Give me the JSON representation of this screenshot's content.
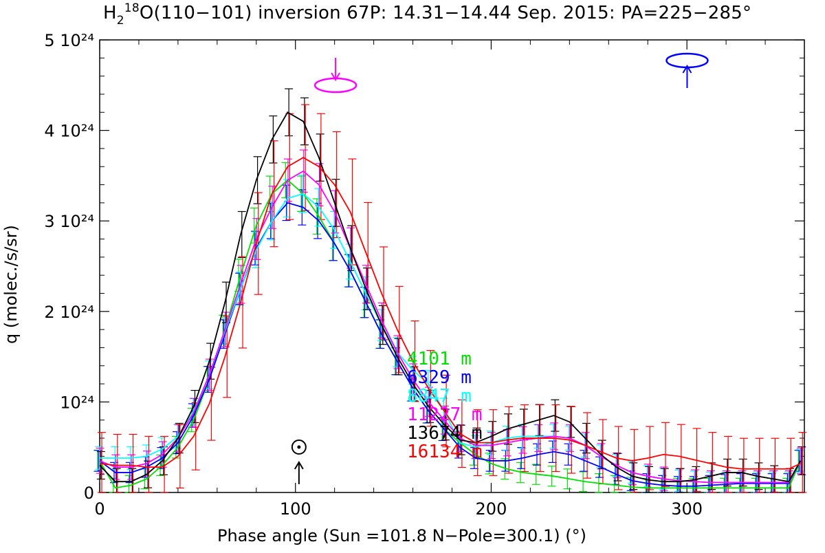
{
  "chart_data": {
    "type": "line",
    "title": {
      "molecule_h": "H",
      "molecule_sub": "2",
      "molecule_sup": "18",
      "molecule_o": "O",
      "rest": "(110−101) inversion 67P: 14.31−14.44 Sep. 2015: PA=225−285°"
    },
    "xlabel": "Phase angle (Sun =101.8 N−Pole=300.1) (°)",
    "ylabel": "q (molec./s/sr)",
    "xlim": [
      0,
      360
    ],
    "ylim": [
      0,
      5
    ],
    "y_scale_note": "10^24",
    "xticks": [
      "0",
      "100",
      "200",
      "300"
    ],
    "yticks": [
      {
        "value": 0,
        "label": "0"
      },
      {
        "value": 1,
        "label": "10²⁴"
      },
      {
        "value": 2,
        "label": "2 10²⁴"
      },
      {
        "value": 3,
        "label": "3 10²⁴"
      },
      {
        "value": 4,
        "label": "4 10²⁴"
      },
      {
        "value": 5,
        "label": "5 10²⁴"
      }
    ],
    "x": [
      0,
      8,
      16,
      24,
      32,
      40,
      48,
      56,
      64,
      72,
      80,
      88,
      96,
      104,
      112,
      120,
      128,
      136,
      144,
      152,
      160,
      168,
      176,
      184,
      192,
      200,
      208,
      216,
      224,
      232,
      240,
      248,
      256,
      264,
      272,
      280,
      288,
      296,
      304,
      312,
      320,
      328,
      336,
      344,
      352,
      358
    ],
    "series": [
      {
        "name": "4101 m",
        "label": "4101  m",
        "color": "#00e000",
        "values": [
          0.35,
          0.05,
          0.08,
          0.15,
          0.3,
          0.5,
          0.8,
          1.25,
          1.8,
          2.4,
          2.95,
          3.3,
          3.45,
          3.3,
          3.05,
          2.75,
          2.45,
          2.1,
          1.75,
          1.45,
          1.15,
          0.9,
          0.7,
          0.55,
          0.42,
          0.32,
          0.26,
          0.22,
          0.2,
          0.18,
          0.15,
          0.12,
          0.1,
          0.08,
          0.06,
          0.05,
          0.05,
          0.05,
          0.05,
          0.05,
          0.05,
          0.05,
          0.05,
          0.05,
          0.05,
          0.35
        ],
        "err": 0.15
      },
      {
        "name": "6329 m",
        "label": "6329  m",
        "color": "#0000ff",
        "values": [
          0.35,
          0.22,
          0.22,
          0.28,
          0.38,
          0.55,
          0.85,
          1.25,
          1.75,
          2.25,
          2.7,
          3.0,
          3.2,
          3.15,
          3.0,
          2.75,
          2.45,
          2.1,
          1.75,
          1.45,
          1.15,
          0.9,
          0.7,
          0.5,
          0.38,
          0.35,
          0.35,
          0.38,
          0.42,
          0.45,
          0.42,
          0.35,
          0.28,
          0.2,
          0.13,
          0.1,
          0.08,
          0.07,
          0.07,
          0.08,
          0.09,
          0.1,
          0.1,
          0.1,
          0.1,
          0.35
        ],
        "err": 0.15
      },
      {
        "name": "8847 m",
        "label": "8847  m",
        "color": "#00ffff",
        "values": [
          0.38,
          0.38,
          0.38,
          0.4,
          0.48,
          0.62,
          0.9,
          1.3,
          1.78,
          2.25,
          2.68,
          3.0,
          3.25,
          3.3,
          3.15,
          2.9,
          2.55,
          2.2,
          1.85,
          1.55,
          1.35,
          1.2,
          0.9,
          0.55,
          0.5,
          0.55,
          0.6,
          0.62,
          0.62,
          0.62,
          0.6,
          0.52,
          0.4,
          0.3,
          0.22,
          0.18,
          0.15,
          0.13,
          0.12,
          0.11,
          0.11,
          0.11,
          0.11,
          0.11,
          0.11,
          0.35
        ],
        "err": 0.16
      },
      {
        "name": "11227 m",
        "label": "11227  m",
        "color": "#ff00ff",
        "values": [
          0.35,
          0.28,
          0.28,
          0.32,
          0.42,
          0.6,
          0.88,
          1.3,
          1.8,
          2.3,
          2.8,
          3.15,
          3.45,
          3.55,
          3.4,
          3.1,
          2.7,
          2.3,
          1.9,
          1.55,
          1.25,
          1.0,
          0.8,
          0.6,
          0.52,
          0.52,
          0.55,
          0.58,
          0.6,
          0.62,
          0.6,
          0.52,
          0.4,
          0.3,
          0.22,
          0.18,
          0.15,
          0.13,
          0.12,
          0.11,
          0.11,
          0.11,
          0.11,
          0.11,
          0.11,
          0.35
        ],
        "err": 0.18
      },
      {
        "name": "13674 m",
        "label": "13674  m",
        "color": "#000000",
        "values": [
          0.3,
          0.12,
          0.12,
          0.2,
          0.35,
          0.6,
          0.95,
          1.45,
          2.1,
          2.85,
          3.45,
          3.9,
          4.2,
          4.1,
          3.7,
          3.2,
          2.7,
          2.25,
          1.85,
          1.5,
          1.2,
          0.95,
          0.75,
          0.58,
          0.55,
          0.62,
          0.7,
          0.75,
          0.8,
          0.85,
          0.78,
          0.6,
          0.42,
          0.28,
          0.18,
          0.14,
          0.12,
          0.12,
          0.14,
          0.18,
          0.22,
          0.22,
          0.18,
          0.15,
          0.12,
          0.35
        ],
        "err": 0.2
      },
      {
        "name": "16134 m",
        "label": "16134  m",
        "color": "#ff0000",
        "values": [
          0.32,
          0.3,
          0.3,
          0.28,
          0.28,
          0.4,
          0.62,
          0.98,
          1.5,
          2.1,
          2.75,
          3.3,
          3.6,
          3.7,
          3.6,
          3.4,
          3.1,
          2.65,
          2.2,
          1.8,
          1.45,
          1.15,
          0.9,
          0.65,
          0.55,
          0.55,
          0.58,
          0.6,
          0.6,
          0.6,
          0.58,
          0.52,
          0.45,
          0.38,
          0.35,
          0.38,
          0.42,
          0.4,
          0.36,
          0.32,
          0.28,
          0.26,
          0.26,
          0.26,
          0.26,
          0.32
        ],
        "err": 0.45
      }
    ],
    "annotations": {
      "sun_symbol": "⊙",
      "sun_x": 101.8,
      "npole_x": 300.1
    }
  }
}
